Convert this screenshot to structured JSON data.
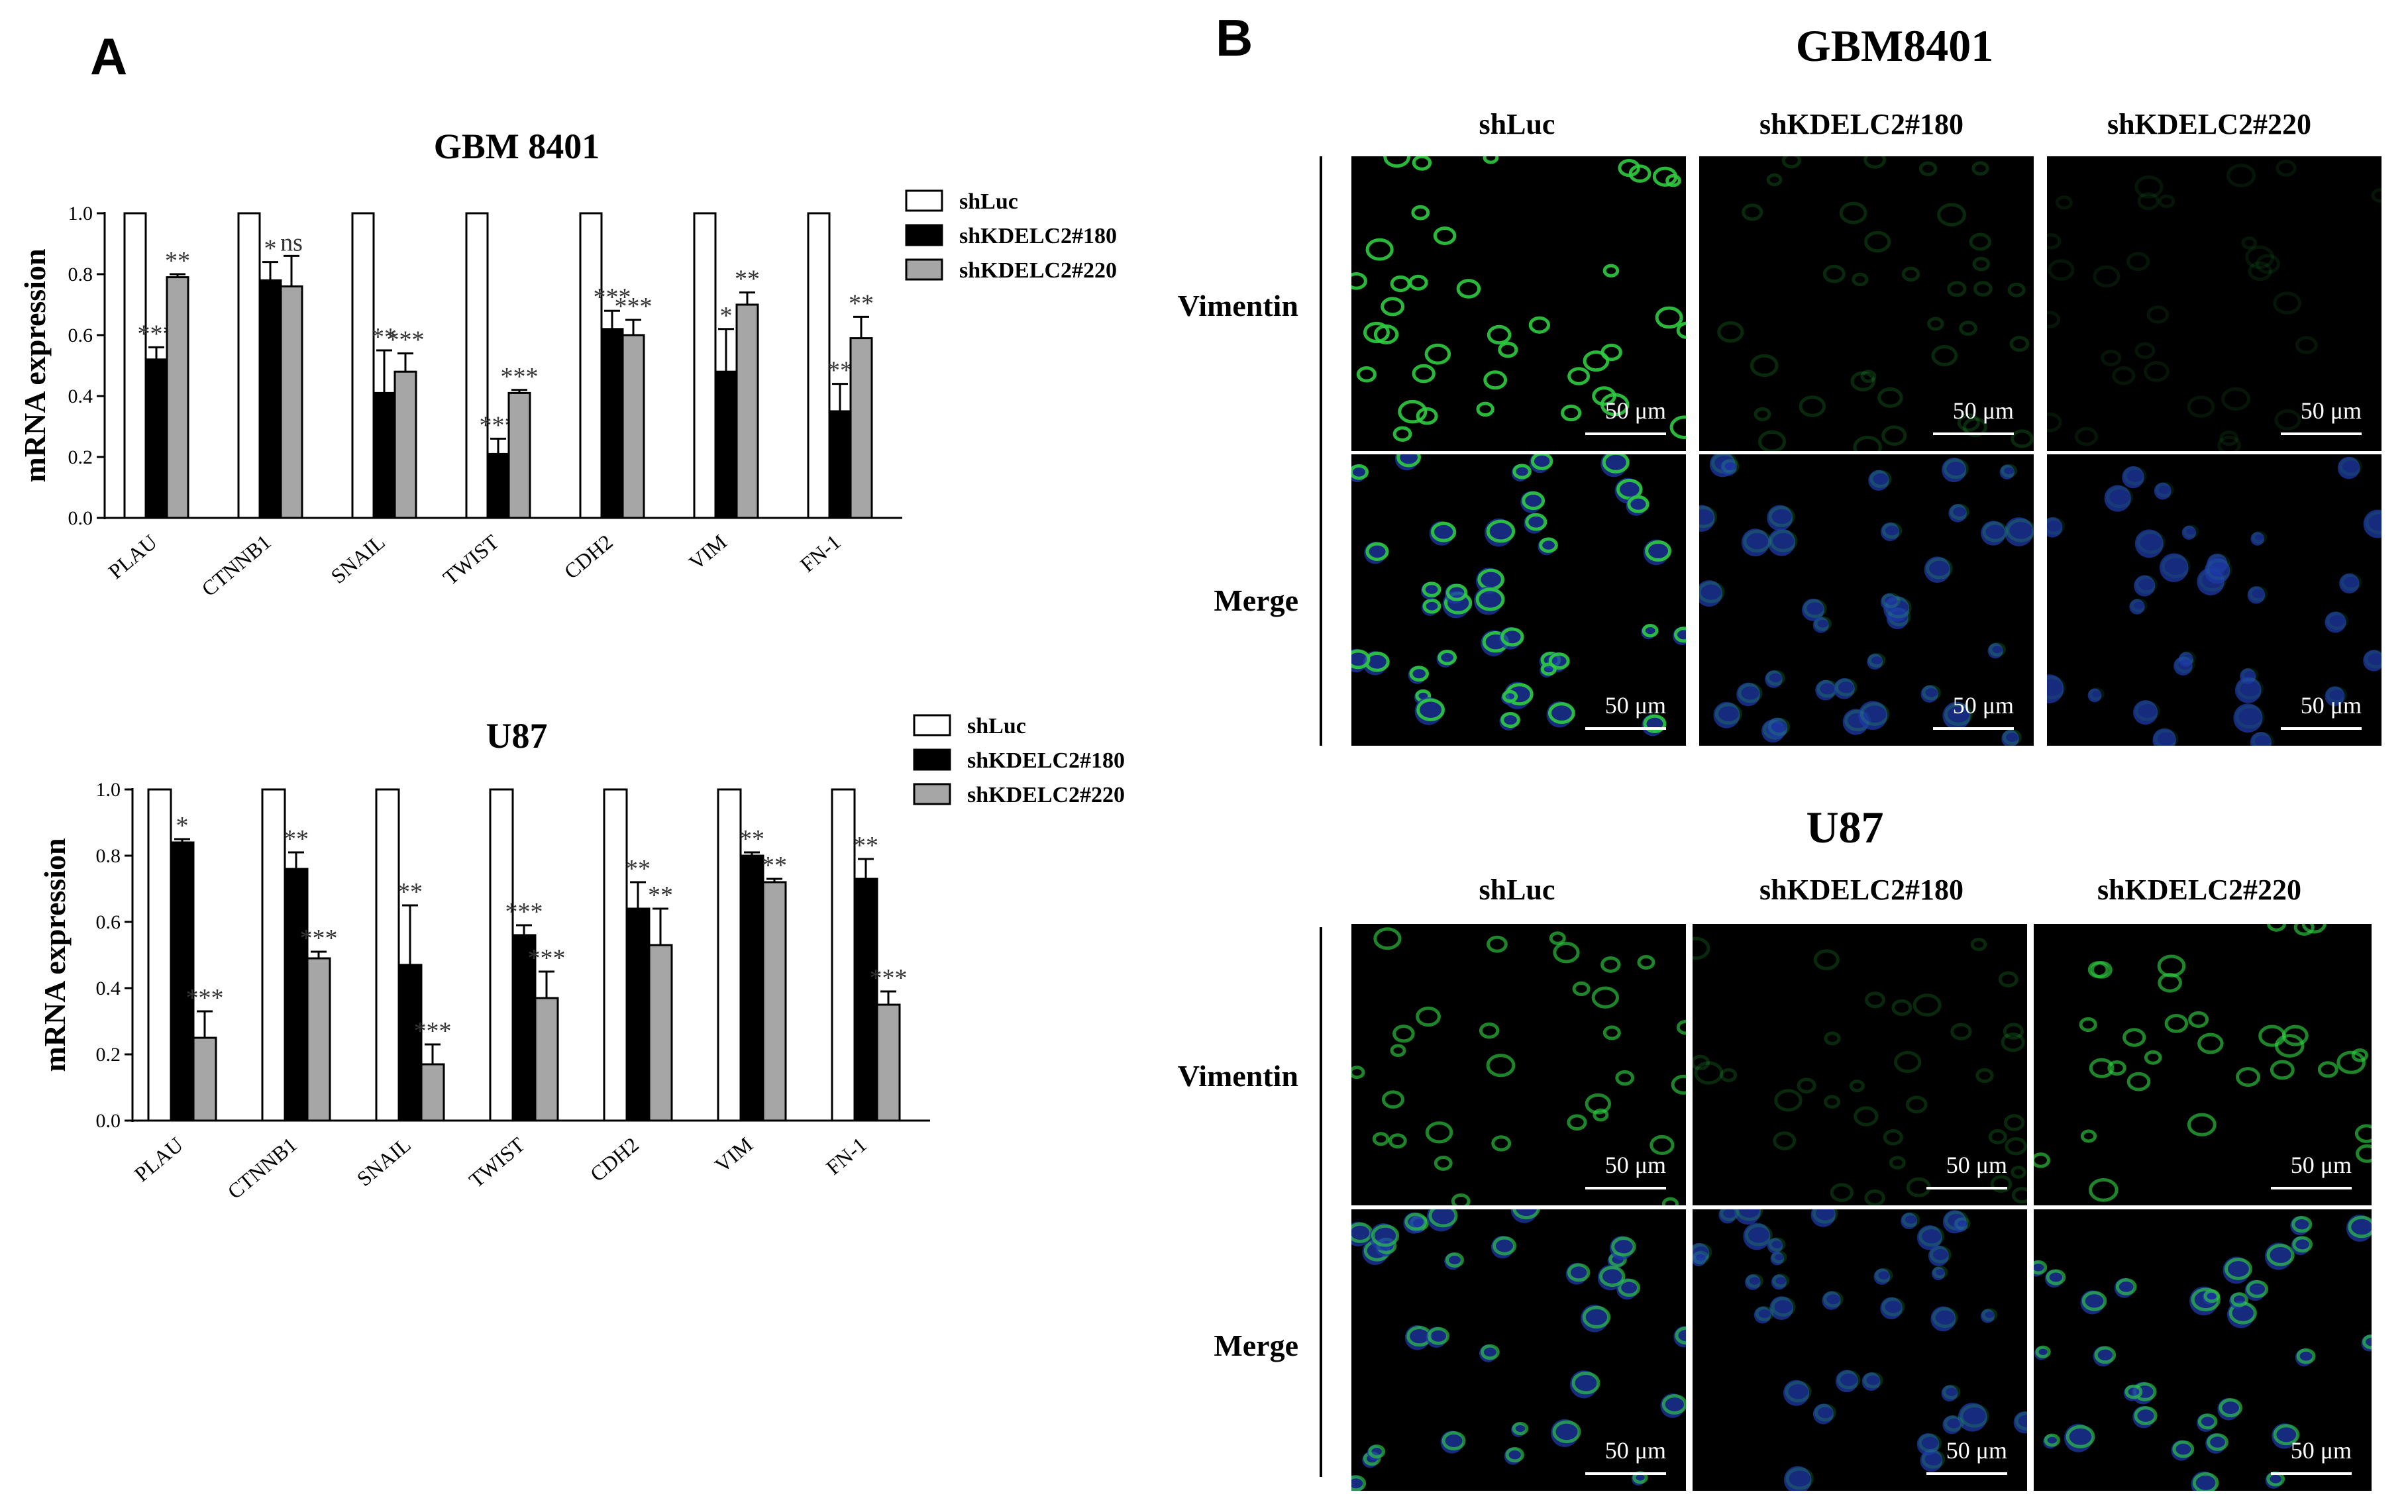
{
  "panels": {
    "a_label": "A",
    "b_label": "B"
  },
  "chart_data": [
    {
      "type": "bar",
      "title": "GBM 8401",
      "ylabel": "mRNA expression",
      "ylim": [
        0,
        1.0
      ],
      "yticks": [
        "0.0",
        "0.2",
        "0.4",
        "0.6",
        "0.8",
        "1.0"
      ],
      "categories": [
        "PLAU",
        "CTNNB1",
        "SNAIL",
        "TWIST",
        "CDH2",
        "VIM",
        "FN-1"
      ],
      "series": [
        {
          "name": "shLuc",
          "color": "#ffffff",
          "values": [
            1.0,
            1.0,
            1.0,
            1.0,
            1.0,
            1.0,
            1.0
          ],
          "errors": [
            0,
            0,
            0,
            0,
            0,
            0,
            0
          ],
          "sig": [
            "",
            "",
            "",
            "",
            "",
            "",
            ""
          ]
        },
        {
          "name": "shKDELC2#180",
          "color": "#000000",
          "values": [
            0.52,
            0.78,
            0.41,
            0.21,
            0.62,
            0.48,
            0.35
          ],
          "errors": [
            0.04,
            0.06,
            0.14,
            0.05,
            0.06,
            0.14,
            0.09
          ],
          "sig": [
            "***",
            "*",
            "**",
            "***",
            "***",
            "*",
            "**"
          ]
        },
        {
          "name": "shKDELC2#220",
          "color": "#a6a6a6",
          "values": [
            0.79,
            0.76,
            0.48,
            0.41,
            0.6,
            0.7,
            0.59
          ],
          "errors": [
            0.01,
            0.1,
            0.06,
            0.01,
            0.05,
            0.04,
            0.07
          ],
          "sig": [
            "**",
            "ns",
            "***",
            "***",
            "***",
            "**",
            "**"
          ]
        }
      ]
    },
    {
      "type": "bar",
      "title": "U87",
      "ylabel": "mRNA expression",
      "ylim": [
        0,
        1.0
      ],
      "yticks": [
        "0.0",
        "0.2",
        "0.4",
        "0.6",
        "0.8",
        "1.0"
      ],
      "categories": [
        "PLAU",
        "CTNNB1",
        "SNAIL",
        "TWIST",
        "CDH2",
        "VIM",
        "FN-1"
      ],
      "series": [
        {
          "name": "shLuc",
          "color": "#ffffff",
          "values": [
            1.0,
            1.0,
            1.0,
            1.0,
            1.0,
            1.0,
            1.0
          ],
          "errors": [
            0,
            0,
            0,
            0,
            0,
            0,
            0
          ],
          "sig": [
            "",
            "",
            "",
            "",
            "",
            "",
            ""
          ]
        },
        {
          "name": "shKDELC2#180",
          "color": "#000000",
          "values": [
            0.84,
            0.76,
            0.47,
            0.56,
            0.64,
            0.8,
            0.73
          ],
          "errors": [
            0.01,
            0.05,
            0.18,
            0.03,
            0.08,
            0.01,
            0.06
          ],
          "sig": [
            "*",
            "**",
            "**",
            "***",
            "**",
            "**",
            "**"
          ]
        },
        {
          "name": "shKDELC2#220",
          "color": "#a6a6a6",
          "values": [
            0.25,
            0.49,
            0.17,
            0.37,
            0.53,
            0.72,
            0.35
          ],
          "errors": [
            0.08,
            0.02,
            0.06,
            0.08,
            0.11,
            0.01,
            0.04
          ],
          "sig": [
            "***",
            "***",
            "***",
            "***",
            "**",
            "**",
            "***"
          ]
        }
      ]
    }
  ],
  "images": {
    "gbm": {
      "title": "GBM8401",
      "columns": [
        "shLuc",
        "shKDELC2#180",
        "shKDELC2#220"
      ],
      "rows": [
        "Vimentin",
        "Merge"
      ],
      "scale": "50 μm"
    },
    "u87": {
      "title": "U87",
      "columns": [
        "shLuc",
        "shKDELC2#180",
        "shKDELC2#220"
      ],
      "rows": [
        "Vimentin",
        "Merge"
      ],
      "scale": "50 μm"
    }
  }
}
